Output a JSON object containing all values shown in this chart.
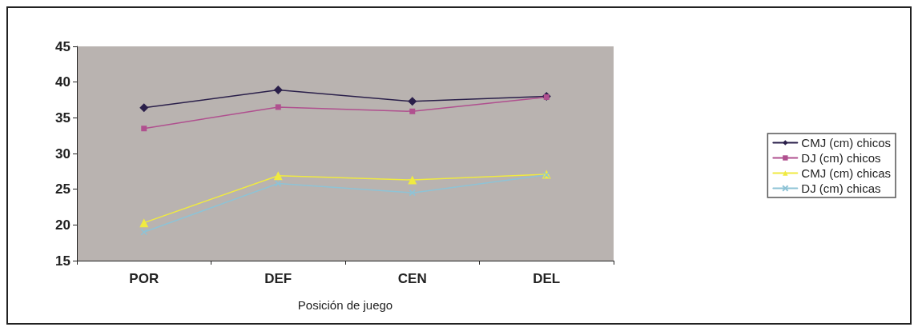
{
  "chart_data": {
    "type": "line",
    "xlabel": "Posición de juego",
    "categories": [
      "POR",
      "DEF",
      "CEN",
      "DEL"
    ],
    "series": [
      {
        "name": "CMJ (cm) chicos",
        "color": "#2a1f4a",
        "marker": "diamond",
        "values": [
          36.4,
          38.9,
          37.3,
          38.0
        ]
      },
      {
        "name": "DJ (cm) chicos",
        "color": "#b0508f",
        "marker": "square",
        "values": [
          33.5,
          36.5,
          35.9,
          37.9
        ]
      },
      {
        "name": "CMJ (cm) chicas",
        "color": "#f0ea40",
        "marker": "triangle",
        "values": [
          20.3,
          26.9,
          26.3,
          27.1
        ]
      },
      {
        "name": "DJ (cm) chicas",
        "color": "#8ec3d6",
        "marker": "cross",
        "values": [
          19.0,
          25.8,
          24.5,
          27.0
        ]
      }
    ],
    "ylim": [
      15,
      45
    ],
    "yticks": [
      15,
      20,
      25,
      30,
      35,
      40,
      45
    ],
    "grid": false,
    "legend": "right",
    "line_style": "solid"
  }
}
